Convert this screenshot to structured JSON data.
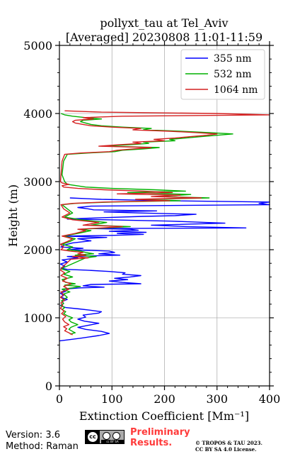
{
  "chart_data": {
    "type": "line",
    "title": "pollyxt_tau at Tel_Aviv",
    "subtitle": "[Averaged] 20230808 11:01-11:59",
    "xlabel": "Extinction Coefficient [Mm⁻¹]",
    "ylabel": "Height (m)",
    "xlim": [
      0,
      400
    ],
    "ylim": [
      0,
      5000
    ],
    "xticks": [
      0,
      100,
      200,
      300,
      400
    ],
    "yticks": [
      0,
      1000,
      2000,
      3000,
      4000,
      5000
    ],
    "grid": true,
    "legend_position": "top-right",
    "series": [
      {
        "name": "355 nm",
        "color": "#0000ff",
        "points": [
          [
            0,
            660
          ],
          [
            40,
            700
          ],
          [
            75,
            740
          ],
          [
            95,
            770
          ],
          [
            80,
            800
          ],
          [
            50,
            830
          ],
          [
            35,
            860
          ],
          [
            55,
            890
          ],
          [
            75,
            920
          ],
          [
            48,
            950
          ],
          [
            35,
            980
          ],
          [
            50,
            1010
          ],
          [
            45,
            1040
          ],
          [
            75,
            1070
          ],
          [
            80,
            1090
          ],
          [
            60,
            1110
          ],
          [
            38,
            1130
          ],
          [
            12,
            1150
          ],
          [
            2,
            1180
          ],
          [
            8,
            1210
          ],
          [
            5,
            1240
          ],
          [
            15,
            1270
          ],
          [
            3,
            1300
          ],
          [
            8,
            1330
          ],
          [
            2,
            1360
          ],
          [
            12,
            1390
          ],
          [
            5,
            1420
          ],
          [
            40,
            1440
          ],
          [
            85,
            1450
          ],
          [
            45,
            1470
          ],
          [
            60,
            1490
          ],
          [
            155,
            1500
          ],
          [
            120,
            1520
          ],
          [
            95,
            1540
          ],
          [
            130,
            1560
          ],
          [
            105,
            1580
          ],
          [
            135,
            1600
          ],
          [
            155,
            1620
          ],
          [
            120,
            1640
          ],
          [
            125,
            1660
          ],
          [
            95,
            1680
          ],
          [
            50,
            1700
          ],
          [
            15,
            1710
          ],
          [
            3,
            1730
          ],
          [
            10,
            1760
          ],
          [
            2,
            1790
          ],
          [
            15,
            1820
          ],
          [
            5,
            1850
          ],
          [
            35,
            1880
          ],
          [
            15,
            1900
          ],
          [
            115,
            1920
          ],
          [
            75,
            1940
          ],
          [
            105,
            1960
          ],
          [
            95,
            1980
          ],
          [
            20,
            2000
          ],
          [
            45,
            2020
          ],
          [
            3,
            2040
          ],
          [
            10,
            2070
          ],
          [
            25,
            2100
          ],
          [
            60,
            2130
          ],
          [
            35,
            2160
          ],
          [
            90,
            2180
          ],
          [
            10,
            2200
          ],
          [
            100,
            2210
          ],
          [
            160,
            2225
          ],
          [
            110,
            2240
          ],
          [
            165,
            2255
          ],
          [
            95,
            2270
          ],
          [
            150,
            2285
          ],
          [
            135,
            2300
          ],
          [
            60,
            2310
          ],
          [
            355,
            2320
          ],
          [
            240,
            2340
          ],
          [
            175,
            2360
          ],
          [
            315,
            2390
          ],
          [
            210,
            2420
          ],
          [
            90,
            2440
          ],
          [
            15,
            2450
          ],
          [
            80,
            2470
          ],
          [
            160,
            2490
          ],
          [
            220,
            2500
          ],
          [
            260,
            2520
          ],
          [
            150,
            2540
          ],
          [
            85,
            2555
          ],
          [
            185,
            2570
          ],
          [
            65,
            2585
          ],
          [
            55,
            2600
          ],
          [
            35,
            2620
          ],
          [
            60,
            2640
          ],
          [
            400,
            2660
          ],
          [
            380,
            2680
          ],
          [
            400,
            2700
          ],
          [
            200,
            2720
          ],
          [
            80,
            2740
          ],
          [
            20,
            2760
          ]
        ]
      },
      {
        "name": "532 nm",
        "color": "#00b000",
        "points": [
          [
            20,
            760
          ],
          [
            30,
            780
          ],
          [
            25,
            800
          ],
          [
            18,
            830
          ],
          [
            22,
            860
          ],
          [
            28,
            880
          ],
          [
            35,
            900
          ],
          [
            22,
            940
          ],
          [
            18,
            970
          ],
          [
            25,
            1000
          ],
          [
            15,
            1030
          ],
          [
            8,
            1060
          ],
          [
            12,
            1090
          ],
          [
            5,
            1120
          ],
          [
            10,
            1150
          ],
          [
            3,
            1180
          ],
          [
            8,
            1210
          ],
          [
            4,
            1250
          ],
          [
            15,
            1300
          ],
          [
            8,
            1350
          ],
          [
            20,
            1380
          ],
          [
            5,
            1420
          ],
          [
            25,
            1440
          ],
          [
            40,
            1460
          ],
          [
            10,
            1480
          ],
          [
            30,
            1500
          ],
          [
            12,
            1520
          ],
          [
            5,
            1560
          ],
          [
            25,
            1600
          ],
          [
            8,
            1640
          ],
          [
            20,
            1680
          ],
          [
            3,
            1720
          ],
          [
            15,
            1760
          ],
          [
            50,
            1880
          ],
          [
            70,
            1900
          ],
          [
            30,
            1920
          ],
          [
            65,
            1940
          ],
          [
            50,
            1960
          ],
          [
            40,
            1980
          ],
          [
            15,
            2000
          ],
          [
            25,
            2040
          ],
          [
            5,
            2080
          ],
          [
            20,
            2120
          ],
          [
            30,
            2160
          ],
          [
            8,
            2200
          ],
          [
            35,
            2240
          ],
          [
            60,
            2280
          ],
          [
            40,
            2300
          ],
          [
            90,
            2320
          ],
          [
            135,
            2340
          ],
          [
            60,
            2360
          ],
          [
            90,
            2400
          ],
          [
            40,
            2440
          ],
          [
            10,
            2480
          ],
          [
            25,
            2540
          ],
          [
            15,
            2600
          ],
          [
            5,
            2660
          ],
          [
            30,
            2680
          ],
          [
            100,
            2700
          ],
          [
            230,
            2720
          ],
          [
            160,
            2740
          ],
          [
            285,
            2760
          ],
          [
            190,
            2780
          ],
          [
            250,
            2810
          ],
          [
            130,
            2840
          ],
          [
            240,
            2860
          ],
          [
            180,
            2880
          ],
          [
            100,
            2900
          ],
          [
            50,
            2920
          ],
          [
            15,
            2960
          ],
          [
            10,
            3000
          ],
          [
            5,
            3100
          ],
          [
            8,
            3300
          ],
          [
            15,
            3400
          ],
          [
            55,
            3420
          ],
          [
            105,
            3440
          ],
          [
            120,
            3460
          ],
          [
            160,
            3480
          ],
          [
            190,
            3500
          ],
          [
            90,
            3520
          ],
          [
            130,
            3540
          ],
          [
            170,
            3560
          ],
          [
            160,
            3580
          ],
          [
            220,
            3600
          ],
          [
            210,
            3620
          ],
          [
            240,
            3640
          ],
          [
            270,
            3660
          ],
          [
            300,
            3680
          ],
          [
            330,
            3700
          ],
          [
            285,
            3720
          ],
          [
            230,
            3740
          ],
          [
            160,
            3760
          ],
          [
            175,
            3780
          ],
          [
            120,
            3800
          ],
          [
            80,
            3820
          ],
          [
            60,
            3840
          ],
          [
            50,
            3860
          ],
          [
            40,
            3880
          ],
          [
            45,
            3900
          ],
          [
            80,
            3920
          ],
          [
            50,
            3940
          ],
          [
            25,
            3960
          ],
          [
            10,
            3980
          ],
          [
            3,
            4000
          ]
        ]
      },
      {
        "name": "1064 nm",
        "color": "#d42020",
        "points": [
          [
            25,
            750
          ],
          [
            18,
            780
          ],
          [
            10,
            810
          ],
          [
            14,
            840
          ],
          [
            8,
            870
          ],
          [
            18,
            900
          ],
          [
            10,
            940
          ],
          [
            6,
            980
          ],
          [
            12,
            1020
          ],
          [
            4,
            1060
          ],
          [
            9,
            1100
          ],
          [
            2,
            1140
          ],
          [
            6,
            1180
          ],
          [
            3,
            1220
          ],
          [
            10,
            1260
          ],
          [
            2,
            1300
          ],
          [
            8,
            1340
          ],
          [
            3,
            1380
          ],
          [
            18,
            1420
          ],
          [
            8,
            1460
          ],
          [
            22,
            1500
          ],
          [
            6,
            1540
          ],
          [
            15,
            1580
          ],
          [
            3,
            1620
          ],
          [
            10,
            1660
          ],
          [
            2,
            1700
          ],
          [
            5,
            1740
          ],
          [
            22,
            1860
          ],
          [
            55,
            1880
          ],
          [
            25,
            1900
          ],
          [
            50,
            1920
          ],
          [
            35,
            1940
          ],
          [
            45,
            1960
          ],
          [
            20,
            1980
          ],
          [
            3,
            2000
          ],
          [
            8,
            2040
          ],
          [
            2,
            2080
          ],
          [
            15,
            2120
          ],
          [
            25,
            2160
          ],
          [
            5,
            2200
          ],
          [
            30,
            2240
          ],
          [
            50,
            2280
          ],
          [
            35,
            2300
          ],
          [
            80,
            2320
          ],
          [
            120,
            2340
          ],
          [
            45,
            2360
          ],
          [
            75,
            2400
          ],
          [
            25,
            2440
          ],
          [
            5,
            2480
          ],
          [
            20,
            2540
          ],
          [
            8,
            2600
          ],
          [
            3,
            2660
          ],
          [
            25,
            2680
          ],
          [
            85,
            2700
          ],
          [
            210,
            2720
          ],
          [
            145,
            2740
          ],
          [
            270,
            2760
          ],
          [
            175,
            2780
          ],
          [
            230,
            2800
          ],
          [
            110,
            2820
          ],
          [
            215,
            2840
          ],
          [
            160,
            2860
          ],
          [
            85,
            2880
          ],
          [
            35,
            2900
          ],
          [
            8,
            2920
          ],
          [
            5,
            2940
          ],
          [
            18,
            2960
          ],
          [
            5,
            2980
          ],
          [
            2,
            3000
          ],
          [
            3,
            3100
          ],
          [
            5,
            3300
          ],
          [
            10,
            3400
          ],
          [
            40,
            3420
          ],
          [
            95,
            3440
          ],
          [
            110,
            3460
          ],
          [
            140,
            3480
          ],
          [
            175,
            3500
          ],
          [
            75,
            3520
          ],
          [
            110,
            3540
          ],
          [
            155,
            3560
          ],
          [
            140,
            3580
          ],
          [
            200,
            3600
          ],
          [
            180,
            3620
          ],
          [
            220,
            3640
          ],
          [
            250,
            3660
          ],
          [
            280,
            3680
          ],
          [
            300,
            3700
          ],
          [
            260,
            3720
          ],
          [
            210,
            3740
          ],
          [
            140,
            3760
          ],
          [
            155,
            3780
          ],
          [
            100,
            3800
          ],
          [
            60,
            3820
          ],
          [
            45,
            3840
          ],
          [
            30,
            3860
          ],
          [
            25,
            3880
          ],
          [
            30,
            3900
          ],
          [
            65,
            3920
          ],
          [
            45,
            3940
          ],
          [
            120,
            3960
          ],
          [
            400,
            3980
          ],
          [
            300,
            4000
          ],
          [
            80,
            4020
          ],
          [
            10,
            4040
          ]
        ]
      }
    ]
  },
  "footer": {
    "version": "Version: 3.6",
    "method": "Method: Raman",
    "license_badge": "cc BY SA",
    "preliminary_line1": "Preliminary",
    "preliminary_line2": "Results.",
    "copyright_line1": "© TROPOS & TAU 2023.",
    "copyright_line2": "CC BY SA 4.0 License."
  }
}
